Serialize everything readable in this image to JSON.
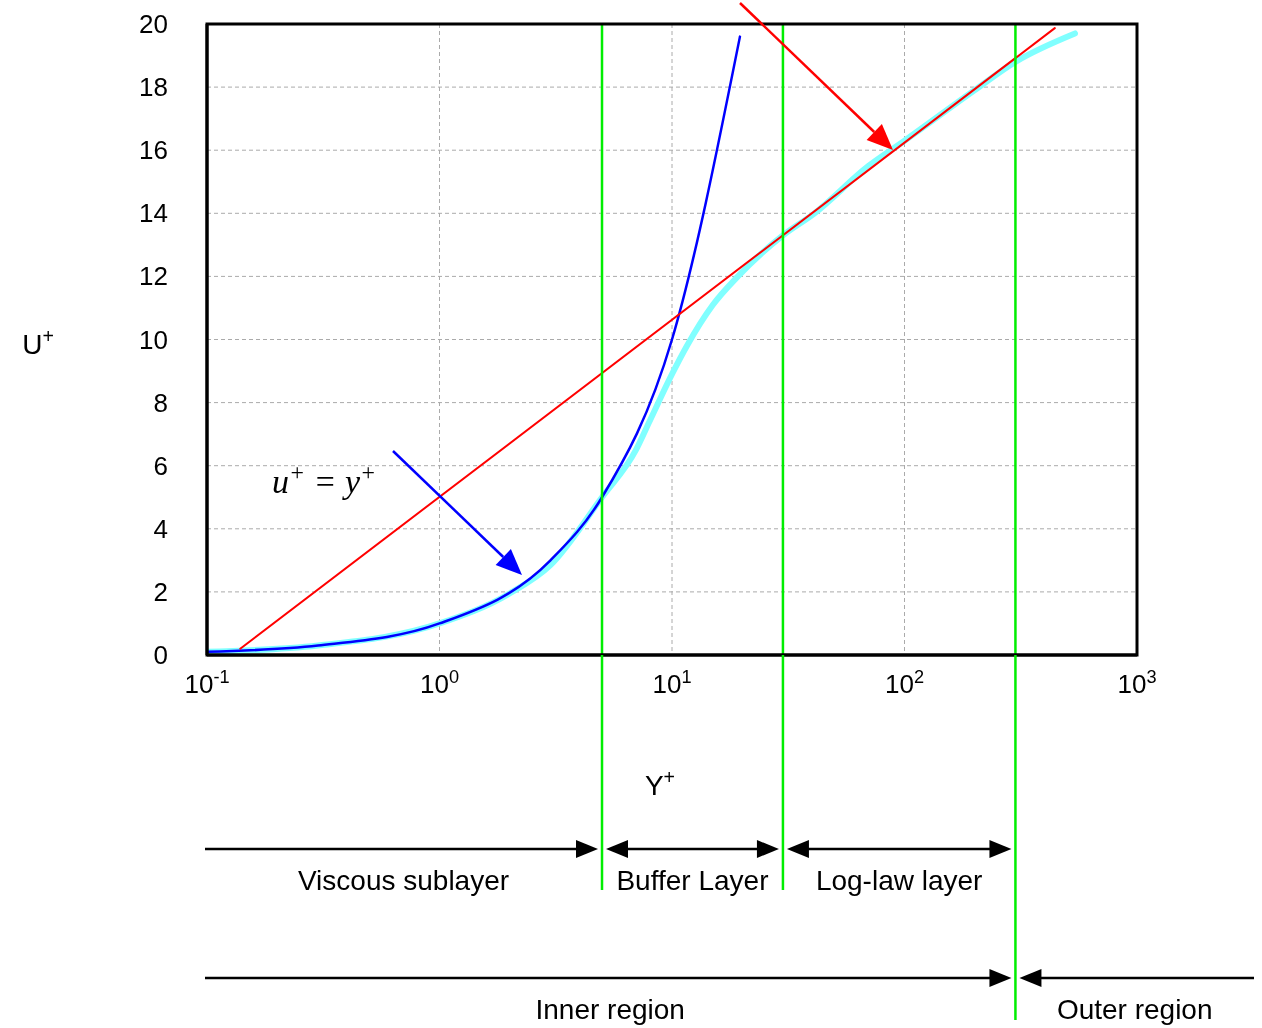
{
  "chart_data": {
    "type": "line",
    "xlabel": "Y$^{+}$",
    "ylabel": "U$^{+}$",
    "log": "x",
    "xlim": [
      0.1,
      1000
    ],
    "xticks": [
      {
        "value": 0.1,
        "label": "10$^{-1}$"
      },
      {
        "value": 1,
        "label": "10$^{0}$"
      },
      {
        "value": 10,
        "label": "10$^{1}$"
      },
      {
        "value": 100,
        "label": "10$^{2}$"
      },
      {
        "value": 1000,
        "label": "10$^{3}$"
      }
    ],
    "ylim": [
      0,
      20
    ],
    "yticks": [
      0,
      2,
      4,
      6,
      8,
      10,
      12,
      14,
      16,
      18,
      20
    ],
    "grid": true,
    "line_style": "solid",
    "series": [
      {
        "color": "#80ffff",
        "x": [
          0.1,
          0.3,
          1,
          2,
          3,
          5,
          7,
          8,
          10,
          11.6,
          15,
          19.2,
          30,
          41,
          70,
          100,
          200,
          300,
          541
        ],
        "values": [
          0.1,
          0.3,
          1,
          1.95,
          2.85,
          5,
          6.5,
          7.4,
          8.9,
          9.8,
          11.1,
          12,
          13.3,
          14,
          15.5,
          16.3,
          17.9,
          18.8,
          19.7
        ]
      },
      {
        "color": "#0000ff",
        "x": [
          0.1,
          0.3,
          1,
          3,
          5,
          10,
          19.6
        ],
        "values": [
          0.1,
          0.3,
          1,
          3,
          5,
          10,
          19.6
        ]
      },
      {
        "color": "#ff0000",
        "x": [
          0.139,
          443
        ],
        "values": [
          0.2,
          19.87
        ]
      }
    ],
    "ref_lines": [
      {
        "axis": "x",
        "value": 5,
        "color": "#00ee00"
      },
      {
        "axis": "x",
        "value": 30,
        "color": "#00ee00"
      },
      {
        "axis": "x",
        "value": 300,
        "color": "#00ee00"
      }
    ],
    "annotations": [
      "u$^{+}$ = y$^{+}$",
      "Viscous sublayer",
      "Buffer Layer",
      "Log-law layer",
      "Inner region",
      "Outer region"
    ]
  }
}
